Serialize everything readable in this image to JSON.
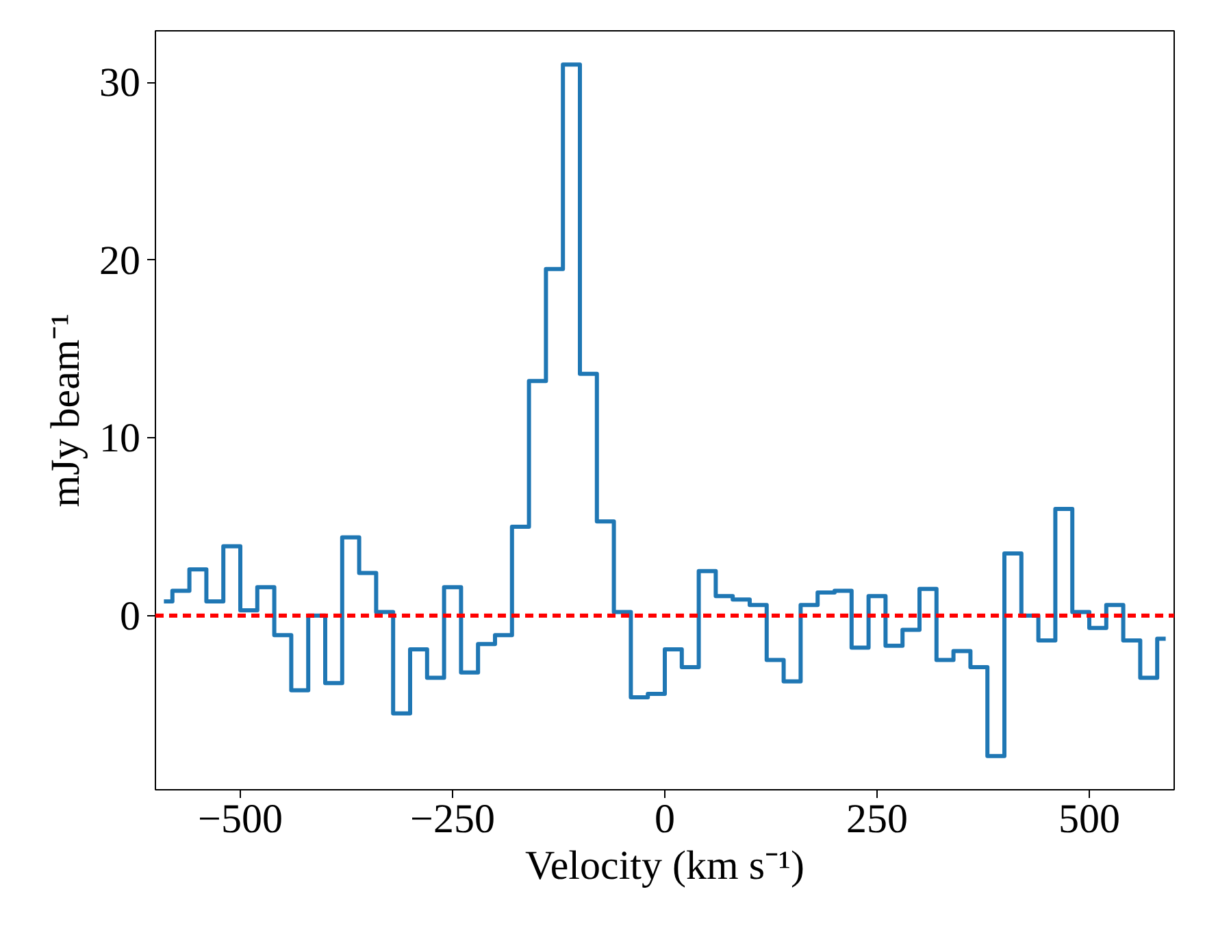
{
  "chart_data": {
    "type": "step",
    "xlabel": "Velocity (km s⁻¹)",
    "ylabel": "mJy beam⁻¹",
    "x": [
      -590,
      -570,
      -550,
      -530,
      -510,
      -490,
      -470,
      -450,
      -430,
      -410,
      -390,
      -370,
      -350,
      -330,
      -310,
      -290,
      -270,
      -250,
      -230,
      -210,
      -190,
      -170,
      -150,
      -130,
      -110,
      -90,
      -70,
      -50,
      -30,
      -10,
      10,
      30,
      50,
      70,
      90,
      110,
      130,
      150,
      170,
      190,
      210,
      230,
      250,
      270,
      290,
      310,
      330,
      350,
      370,
      390,
      410,
      430,
      450,
      470,
      490,
      510,
      530,
      550,
      570,
      590
    ],
    "series": [
      {
        "color": "#1f77b4",
        "values": [
          0.8,
          1.4,
          2.6,
          0.8,
          3.9,
          0.3,
          1.6,
          -1.1,
          -4.2,
          0.0,
          -3.8,
          4.4,
          2.4,
          0.2,
          -5.5,
          -1.9,
          -3.5,
          1.6,
          -3.2,
          -1.6,
          -1.1,
          5.0,
          13.2,
          19.5,
          31.0,
          13.6,
          5.3,
          0.2,
          -4.6,
          -4.4,
          -1.9,
          -2.9,
          2.5,
          1.1,
          0.9,
          0.6,
          -2.5,
          -3.7,
          0.6,
          1.3,
          1.4,
          -1.8,
          1.1,
          -1.7,
          -0.8,
          1.5,
          -2.5,
          -2.0,
          -2.9,
          -7.9,
          3.5,
          0.0,
          -1.4,
          6.0,
          0.2,
          -0.7,
          0.6,
          -1.4,
          -3.5,
          -1.3
        ]
      }
    ],
    "xlim": [
      -600,
      600
    ],
    "ylim": [
      -9.8,
      32.9
    ],
    "xticks": [
      {
        "value": -500,
        "label": "−500"
      },
      {
        "value": -250,
        "label": "−250"
      },
      0,
      250,
      500
    ],
    "yticks": [
      0,
      10,
      20,
      30
    ],
    "ref_lines": [
      {
        "axis": "y",
        "value": 0,
        "color": "#ff0000",
        "line_style": "dashed"
      }
    ],
    "grid": false
  }
}
